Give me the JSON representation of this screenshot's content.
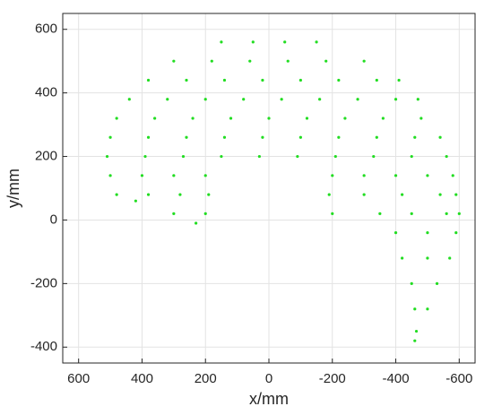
{
  "chart_data": {
    "type": "scatter",
    "xlabel": "x/mm",
    "ylabel": "y/mm",
    "xlim": [
      650,
      -650
    ],
    "ylim": [
      -450,
      650
    ],
    "xticks": [
      600,
      400,
      200,
      0,
      -200,
      -400,
      -600
    ],
    "yticks": [
      -400,
      -200,
      0,
      200,
      400,
      600
    ],
    "grid": true,
    "color": "#22dd22",
    "x": [
      150,
      50,
      -50,
      -150,
      300,
      180,
      60,
      -60,
      -180,
      -300,
      380,
      260,
      140,
      20,
      -100,
      -220,
      -340,
      -410,
      440,
      320,
      200,
      80,
      -40,
      -160,
      -280,
      -400,
      -470,
      480,
      360,
      240,
      120,
      0,
      -120,
      -240,
      -360,
      -480,
      500,
      380,
      260,
      140,
      20,
      -100,
      -220,
      -340,
      -460,
      -540,
      510,
      390,
      270,
      150,
      30,
      -90,
      -210,
      -330,
      -450,
      -560,
      500,
      400,
      300,
      200,
      -200,
      -300,
      -400,
      -500,
      -580,
      480,
      380,
      280,
      190,
      -190,
      -300,
      -420,
      -540,
      -590,
      420,
      300,
      200,
      -200,
      -350,
      -450,
      -560,
      -600,
      230,
      -400,
      -500,
      -590,
      -420,
      -500,
      -570,
      -450,
      -530,
      -460,
      -500,
      -465,
      -460
    ],
    "y": [
      560,
      560,
      560,
      560,
      500,
      500,
      500,
      500,
      500,
      500,
      440,
      440,
      440,
      440,
      440,
      440,
      440,
      440,
      380,
      380,
      380,
      380,
      380,
      380,
      380,
      380,
      380,
      320,
      320,
      320,
      320,
      320,
      320,
      320,
      320,
      320,
      260,
      260,
      260,
      260,
      260,
      260,
      260,
      260,
      260,
      260,
      200,
      200,
      200,
      200,
      200,
      200,
      200,
      200,
      200,
      200,
      140,
      140,
      140,
      140,
      140,
      140,
      140,
      140,
      140,
      80,
      80,
      80,
      80,
      80,
      80,
      80,
      80,
      80,
      60,
      20,
      20,
      20,
      20,
      20,
      20,
      20,
      -10,
      -40,
      -40,
      -40,
      -120,
      -120,
      -120,
      -200,
      -200,
      -280,
      -280,
      -350,
      -380
    ]
  }
}
